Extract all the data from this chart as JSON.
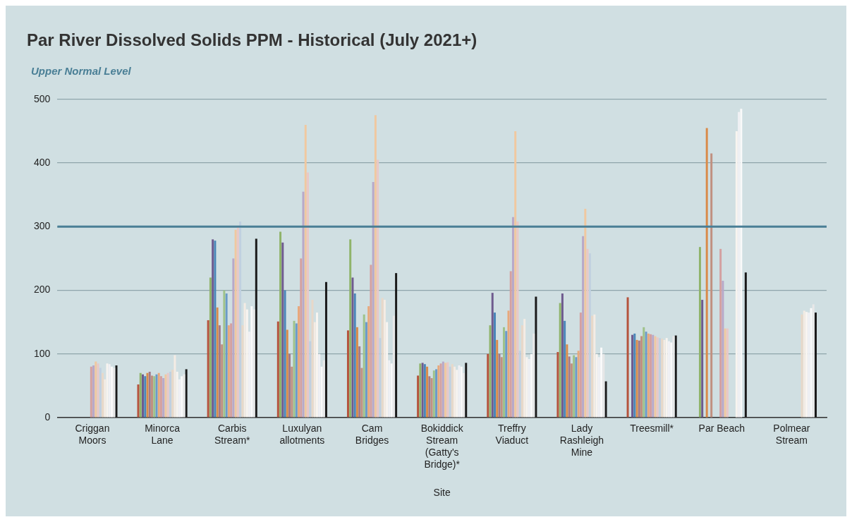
{
  "chart_data": {
    "type": "bar",
    "title": "Par River Dissolved Solids PPM - Historical (July 2021+)",
    "xlabel": "Site",
    "categories": [
      "Criggan Moors",
      "Minorca Lane",
      "Carbis Stream*",
      "Luxulyan allotments",
      "Cam Bridges",
      "Bokiddick Stream (Gatty's Bridge)*",
      "Treffry Viaduct",
      "Lady Rashleigh Mine",
      "Treesmill*",
      "Par Beach",
      "Polmear Stream"
    ],
    "series": [
      {
        "color": "#b5533c",
        "values": [
          null,
          52,
          153,
          151,
          137,
          66,
          100,
          103,
          189,
          null,
          null
        ]
      },
      {
        "color": "#8fb46a",
        "values": [
          null,
          70,
          220,
          292,
          280,
          85,
          145,
          180,
          null,
          268,
          null
        ]
      },
      {
        "color": "#6e5a8e",
        "values": [
          null,
          68,
          280,
          275,
          220,
          86,
          196,
          195,
          130,
          185,
          null
        ]
      },
      {
        "color": "#4a86b8",
        "values": [
          null,
          65,
          278,
          200,
          195,
          84,
          165,
          152,
          132,
          null,
          null
        ]
      },
      {
        "color": "#d98b4a",
        "values": [
          null,
          70,
          173,
          138,
          142,
          80,
          122,
          115,
          122,
          455,
          null
        ]
      },
      {
        "color": "#a07a8a",
        "values": [
          null,
          72,
          145,
          100,
          112,
          65,
          100,
          96,
          121,
          null,
          null
        ]
      },
      {
        "color": "#c09080",
        "values": [
          null,
          66,
          115,
          80,
          78,
          62,
          95,
          85,
          128,
          415,
          null
        ]
      },
      {
        "color": "#9fc28a",
        "values": [
          null,
          65,
          200,
          152,
          162,
          74,
          142,
          98,
          142,
          null,
          null
        ]
      },
      {
        "color": "#6a9ac8",
        "values": [
          null,
          68,
          195,
          148,
          150,
          76,
          136,
          95,
          135,
          null,
          null
        ]
      },
      {
        "color": "#e8a87c",
        "values": [
          null,
          70,
          145,
          175,
          175,
          82,
          168,
          105,
          132,
          null,
          null
        ]
      },
      {
        "color": "#d4a0a0",
        "values": [
          80,
          65,
          148,
          250,
          240,
          85,
          230,
          165,
          131,
          265,
          null
        ]
      },
      {
        "color": "#b8a8c8",
        "values": [
          82,
          62,
          250,
          355,
          370,
          88,
          315,
          285,
          130,
          215,
          null
        ]
      },
      {
        "color": "#f0c8a0",
        "values": [
          88,
          68,
          295,
          460,
          475,
          86,
          450,
          328,
          128,
          140,
          null
        ]
      },
      {
        "color": "#e8c8c8",
        "values": [
          85,
          70,
          300,
          385,
          405,
          87,
          308,
          265,
          126,
          140,
          null
        ]
      },
      {
        "color": "#c0d0e0",
        "values": [
          78,
          72,
          308,
          120,
          125,
          80,
          105,
          258,
          125,
          null,
          null
        ]
      },
      {
        "color": "#e8d8c8",
        "values": [
          70,
          75,
          145,
          185,
          188,
          84,
          145,
          160,
          124,
          null,
          162
        ]
      },
      {
        "color": "#f4ece4",
        "values": [
          60,
          98,
          180,
          150,
          185,
          80,
          155,
          162,
          122,
          null,
          168
        ]
      },
      {
        "color": "#f8f4f0",
        "values": [
          85,
          72,
          170,
          165,
          150,
          75,
          95,
          100,
          125,
          450,
          166
        ]
      },
      {
        "color": "#f0f0f4",
        "values": [
          84,
          60,
          135,
          100,
          90,
          82,
          92,
          95,
          120,
          480,
          165
        ]
      },
      {
        "color": "#fafafa",
        "values": [
          80,
          65,
          175,
          80,
          85,
          80,
          100,
          110,
          118,
          485,
          172
        ]
      },
      {
        "color": "#e8e8e8",
        "values": [
          78,
          68,
          170,
          90,
          160,
          70,
          132,
          100,
          128,
          null,
          178
        ]
      },
      {
        "color": "#1a1a1a",
        "values": [
          82,
          76,
          281,
          213,
          227,
          86,
          190,
          57,
          129,
          228,
          165
        ]
      }
    ],
    "ylim": [
      0,
      500
    ],
    "yticks": [
      0,
      100,
      200,
      300,
      400,
      500
    ],
    "grid": "y",
    "ref_lines": [
      {
        "axis": "y",
        "value": 300,
        "label": "Upper Normal Level",
        "color": "#4a7f96"
      }
    ]
  }
}
